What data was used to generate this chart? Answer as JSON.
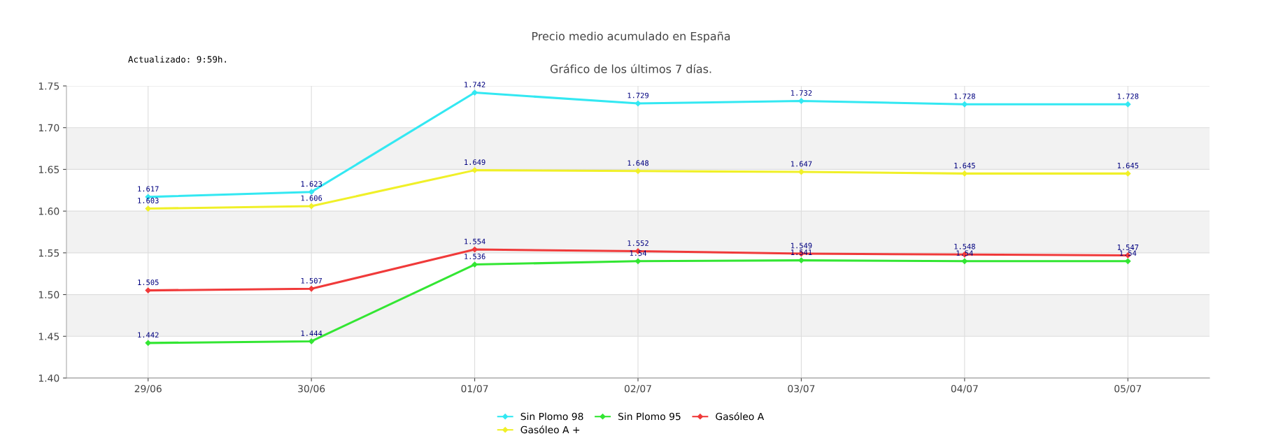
{
  "chart_data": {
    "type": "line",
    "title": "Precio medio acumulado en España",
    "subtitle": "Gráfico de los últimos 7 días.",
    "annotations": [
      "Actualizado: 9:59h."
    ],
    "categories": [
      "29/06",
      "30/06",
      "01/07",
      "02/07",
      "03/07",
      "04/07",
      "05/07"
    ],
    "series": [
      {
        "name": "Sin Plomo 98",
        "color": "#33e8f2",
        "values": [
          1.617,
          1.623,
          1.742,
          1.729,
          1.732,
          1.728,
          1.728
        ],
        "value_labels": [
          "1.617",
          "1.623",
          "1.742",
          "1.729",
          "1.732",
          "1.728",
          "1.728"
        ]
      },
      {
        "name": "Gasóleo A +",
        "color": "#f0f028",
        "values": [
          1.603,
          1.606,
          1.649,
          1.648,
          1.647,
          1.645,
          1.645
        ],
        "value_labels": [
          "1.603",
          "1.606",
          "1.649",
          "1.648",
          "1.647",
          "1.645",
          "1.645"
        ]
      },
      {
        "name": "Sin Plomo 95",
        "color": "#33e633",
        "values": [
          1.442,
          1.444,
          1.536,
          1.54,
          1.541,
          1.54,
          1.54
        ],
        "value_labels": [
          "1.442",
          "1.444",
          "1.536",
          "1.54",
          "1.541",
          "1.54",
          "1.54"
        ]
      },
      {
        "name": "Gasóleo A",
        "color": "#f03a3a",
        "values": [
          1.505,
          1.507,
          1.554,
          1.552,
          1.549,
          1.548,
          1.547
        ],
        "value_labels": [
          "1.505",
          "1.507",
          "1.554",
          "1.552",
          "1.549",
          "1.548",
          "1.547"
        ]
      }
    ],
    "ylim": [
      1.4,
      1.75
    ],
    "yticks": [
      {
        "value": 1.4,
        "label": "1.40"
      },
      {
        "value": 1.45,
        "label": "1.45"
      },
      {
        "value": 1.5,
        "label": "1.50"
      },
      {
        "value": 1.55,
        "label": "1.55"
      },
      {
        "value": 1.6,
        "label": "1.60"
      },
      {
        "value": 1.65,
        "label": "1.65"
      },
      {
        "value": 1.7,
        "label": "1.70"
      },
      {
        "value": 1.75,
        "label": "1.75"
      }
    ],
    "bands": [
      {
        "axis": "y",
        "from": 1.45,
        "to": 1.5,
        "color": "#f2f2f2"
      },
      {
        "axis": "y",
        "from": 1.55,
        "to": 1.6,
        "color": "#f2f2f2"
      },
      {
        "axis": "y",
        "from": 1.65,
        "to": 1.7,
        "color": "#f2f2f2"
      }
    ],
    "grid": true,
    "legend": "bottom",
    "marker": "diamond",
    "line_style": "solid"
  }
}
